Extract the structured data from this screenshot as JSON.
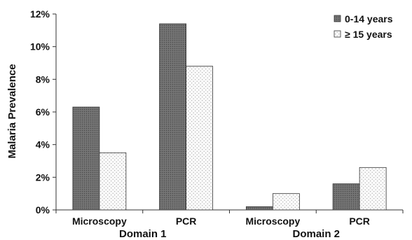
{
  "chart_data": {
    "type": "bar",
    "title": "",
    "ylabel": "Malaria Prevalence",
    "xlabel": "",
    "ylim": [
      0,
      12
    ],
    "yticks": [
      0,
      2,
      4,
      6,
      8,
      10,
      12
    ],
    "ytick_suffix": "%",
    "grid": false,
    "legend_position": "top-right",
    "groups": [
      {
        "label": "Domain 1",
        "categories": [
          "Microscopy",
          "PCR"
        ]
      },
      {
        "label": "Domain 2",
        "categories": [
          "Microscopy",
          "PCR"
        ]
      }
    ],
    "categories": [
      "Microscopy",
      "PCR",
      "Microscopy",
      "PCR"
    ],
    "series": [
      {
        "name": "0-14 years",
        "values": [
          6.3,
          11.4,
          0.2,
          1.6
        ],
        "color": "#707070",
        "pattern": "solid-dark"
      },
      {
        "name": "≥ 15 years",
        "values": [
          3.5,
          8.8,
          1.0,
          2.6
        ],
        "color": "#f2f2f2",
        "pattern": "dotted-light"
      }
    ]
  }
}
